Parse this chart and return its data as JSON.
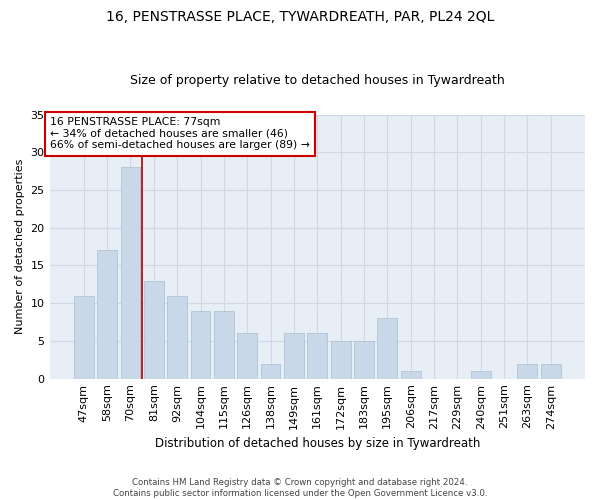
{
  "title": "16, PENSTRASSE PLACE, TYWARDREATH, PAR, PL24 2QL",
  "subtitle": "Size of property relative to detached houses in Tywardreath",
  "xlabel": "Distribution of detached houses by size in Tywardreath",
  "ylabel": "Number of detached properties",
  "categories": [
    "47sqm",
    "58sqm",
    "70sqm",
    "81sqm",
    "92sqm",
    "104sqm",
    "115sqm",
    "126sqm",
    "138sqm",
    "149sqm",
    "161sqm",
    "172sqm",
    "183sqm",
    "195sqm",
    "206sqm",
    "217sqm",
    "229sqm",
    "240sqm",
    "251sqm",
    "263sqm",
    "274sqm"
  ],
  "values": [
    11,
    17,
    28,
    13,
    11,
    9,
    9,
    6,
    2,
    6,
    6,
    5,
    5,
    8,
    1,
    0,
    0,
    1,
    0,
    2,
    2
  ],
  "bar_color": "#c8d8e8",
  "bar_edge_color": "#a8bfcf",
  "grid_color": "#d0d8e8",
  "bg_color": "#e8eef5",
  "vline_color": "#aa0000",
  "vline_x_index": 2,
  "annotation_text": "16 PENSTRASSE PLACE: 77sqm\n← 34% of detached houses are smaller (46)\n66% of semi-detached houses are larger (89) →",
  "annotation_box_facecolor": "#ffffff",
  "annotation_box_edgecolor": "#cc0000",
  "footer": "Contains HM Land Registry data © Crown copyright and database right 2024.\nContains public sector information licensed under the Open Government Licence v3.0.",
  "ylim": [
    0,
    35
  ],
  "yticks": [
    0,
    5,
    10,
    15,
    20,
    25,
    30,
    35
  ]
}
